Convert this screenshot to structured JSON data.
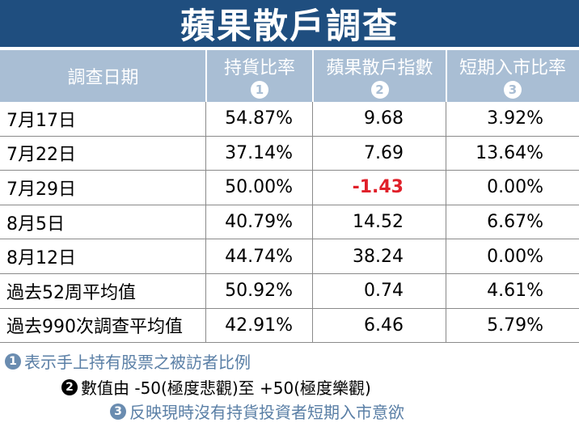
{
  "title": "蘋果散戶調查",
  "header": {
    "col0": "調查日期",
    "col1": "持貨比率",
    "col1_num": "1",
    "col2": "蘋果散戶指數",
    "col2_num": "2",
    "col3": "短期入市比率",
    "col3_num": "3"
  },
  "rows": [
    {
      "date": "7月17日",
      "holding": "54.87%",
      "index": "9.68",
      "entry": "3.92%"
    },
    {
      "date": "7月22日",
      "holding": "37.14%",
      "index": "7.69",
      "entry": "13.64%"
    },
    {
      "date": "7月29日",
      "holding": "50.00%",
      "index": "-1.43",
      "entry": "0.00%"
    },
    {
      "date": "8月5日",
      "holding": "40.79%",
      "index": "14.52",
      "entry": "6.67%"
    },
    {
      "date": "8月12日",
      "holding": "44.74%",
      "index": "38.24",
      "entry": "0.00%"
    },
    {
      "date": "過去52周平均值",
      "holding": "50.92%",
      "index": "0.74",
      "entry": "4.61%"
    },
    {
      "date": "過去990次調查平均值",
      "holding": "42.91%",
      "index": "6.46",
      "entry": "5.79%"
    }
  ],
  "notes": [
    {
      "num": "1",
      "text": "表示手上持有股票之被訪者比例"
    },
    {
      "num": "2",
      "text": "數值由 -50(極度悲觀)至 +50(極度樂觀)"
    },
    {
      "num": "3",
      "text": "反映現時沒有持貨投資者短期入市意欲"
    }
  ],
  "colors": {
    "title_bg": "#1f4e7f",
    "header_bg": "#a9bed4",
    "negative": "#e0202a",
    "note_blue": "#5a7fa6"
  }
}
